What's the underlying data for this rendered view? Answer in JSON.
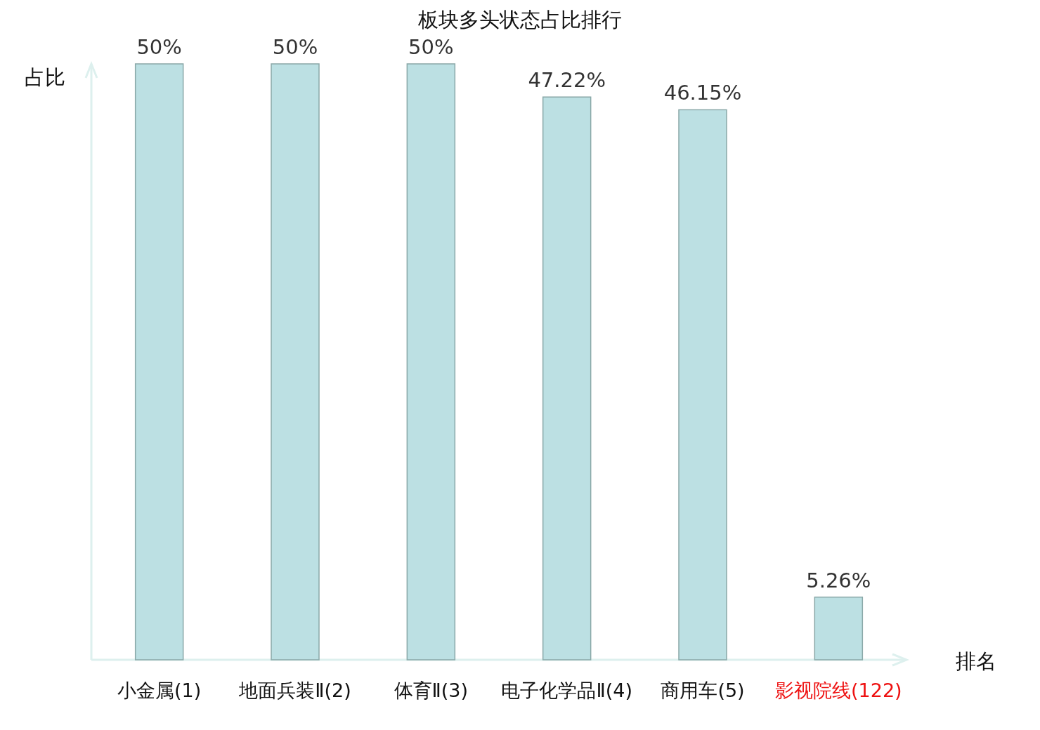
{
  "chart_data": {
    "type": "bar",
    "title": "板块多头状态占比排行",
    "xlabel": "排名",
    "ylabel": "占比",
    "categories": [
      "小金属(1)",
      "地面兵装Ⅱ(2)",
      "体育Ⅱ(3)",
      "电子化学品Ⅱ(4)",
      "商用车(5)",
      "影视院线(122)"
    ],
    "values": [
      50,
      50,
      50,
      47.22,
      46.15,
      5.26
    ],
    "value_labels": [
      "50%",
      "50%",
      "50%",
      "47.22%",
      "46.15%",
      "5.26%"
    ],
    "color": "#bce0e3"
  }
}
